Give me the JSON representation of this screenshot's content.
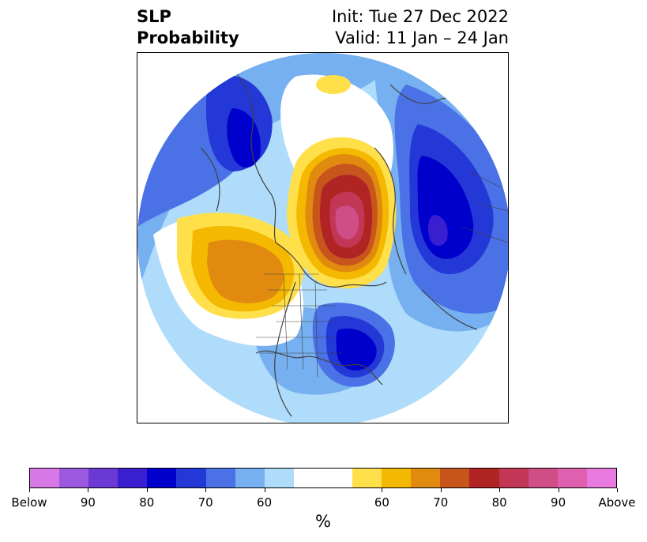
{
  "title": {
    "left_line1": "SLP",
    "left_line2": "Probability",
    "right_line1": "Init: Tue 27 Dec 2022",
    "right_line2": "Valid: 11 Jan – 24 Jan"
  },
  "colorbar": {
    "colors": [
      "#d77ae8",
      "#9b59e0",
      "#6b3ad6",
      "#3a1fd0",
      "#0000cc",
      "#2438d8",
      "#4a72e6",
      "#76b0f0",
      "#aedcfa",
      "#ffffff",
      "#ffffff",
      "#ffe04a",
      "#f5b800",
      "#e08a10",
      "#c8561c",
      "#b02424",
      "#c23656",
      "#cf4e86",
      "#e060b0",
      "#e87ae0"
    ],
    "tick_labels": [
      "Below",
      "90",
      "80",
      "70",
      "60",
      "60",
      "70",
      "80",
      "90",
      "Above"
    ],
    "units": "%"
  },
  "map": {
    "projection": "north-polar-stereographic",
    "variable": "sea level pressure tercile probability",
    "features": [
      {
        "name": "north-pacific-high-prob",
        "category": "above",
        "level": "60-70"
      },
      {
        "name": "arctic-high-prob",
        "category": "above",
        "level": "80-95"
      },
      {
        "name": "siberia-low-prob",
        "category": "below",
        "level": "70-85"
      },
      {
        "name": "east-north-america-low-prob",
        "category": "below",
        "level": "70-80"
      },
      {
        "name": "east-asia-low-prob",
        "category": "below",
        "level": "60-75"
      }
    ]
  }
}
